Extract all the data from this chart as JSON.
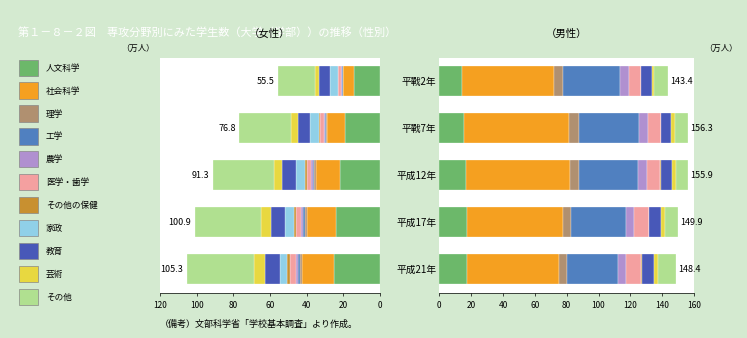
{
  "title": "第１－８－２図　専攻分野別にみた学生数（大学（学部））の推移（性別）",
  "title_bg": "#8b7355",
  "bg_color": "#d4ead0",
  "years": [
    "平戰2年",
    "平戰7年",
    "平成12年",
    "平成17年",
    "平成21年"
  ],
  "female_totals": [
    55.5,
    76.8,
    91.3,
    100.9,
    105.3
  ],
  "male_totals": [
    143.4,
    156.3,
    155.9,
    149.9,
    148.4
  ],
  "categories": [
    "人文科学",
    "社会科学",
    "理学",
    "工学",
    "農学",
    "医学・歯学",
    "その他の保健",
    "家政",
    "教育",
    "芸術",
    "その他"
  ],
  "colors": [
    "#6cb86a",
    "#f5a020",
    "#b09070",
    "#5080c0",
    "#b090d0",
    "#f4a0a0",
    "#c89030",
    "#90d0e8",
    "#4858b8",
    "#e8d840",
    "#b0e090"
  ],
  "female_data": {
    "平戰2年": [
      14.0,
      6.0,
      0.4,
      0.3,
      0.5,
      1.5,
      0.3,
      4.5,
      5.5,
      2.5,
      20.0
    ],
    "平戰7年": [
      19.0,
      10.0,
      0.6,
      0.5,
      0.7,
      2.0,
      0.5,
      5.0,
      6.5,
      3.5,
      28.5
    ],
    "平成12年": [
      22.0,
      13.0,
      0.8,
      0.8,
      0.8,
      2.5,
      0.8,
      5.0,
      7.5,
      4.5,
      33.6
    ],
    "平成17年": [
      24.0,
      16.0,
      1.0,
      1.0,
      0.9,
      3.0,
      1.2,
      4.5,
      8.0,
      5.5,
      35.8
    ],
    "平成21年": [
      25.0,
      17.5,
      1.0,
      1.2,
      1.0,
      3.5,
      1.5,
      4.0,
      8.0,
      6.0,
      36.6
    ]
  },
  "male_data": {
    "平戰2年": [
      14.0,
      58.0,
      5.5,
      36.0,
      5.5,
      7.5,
      0.2,
      0.1,
      6.5,
      1.5,
      8.6
    ],
    "平戰7年": [
      15.5,
      66.0,
      6.0,
      38.0,
      5.5,
      8.0,
      0.2,
      0.1,
      6.5,
      2.0,
      8.5
    ],
    "平成12年": [
      17.0,
      65.0,
      5.8,
      37.0,
      5.5,
      8.5,
      0.3,
      0.1,
      7.0,
      2.2,
      7.5
    ],
    "平成17年": [
      17.5,
      60.0,
      5.5,
      34.5,
      5.0,
      9.0,
      0.4,
      0.1,
      7.5,
      2.3,
      8.1
    ],
    "平成21年": [
      17.5,
      58.0,
      5.0,
      32.0,
      4.8,
      9.5,
      0.5,
      0.1,
      7.5,
      2.5,
      11.0
    ]
  },
  "female_xlim": 120,
  "male_xlim": 160,
  "note": "（備考）文部科学省「学校基本調査」より作成。",
  "female_label": "（女性）",
  "male_label": "（男性）",
  "wan_label": "（万人）"
}
